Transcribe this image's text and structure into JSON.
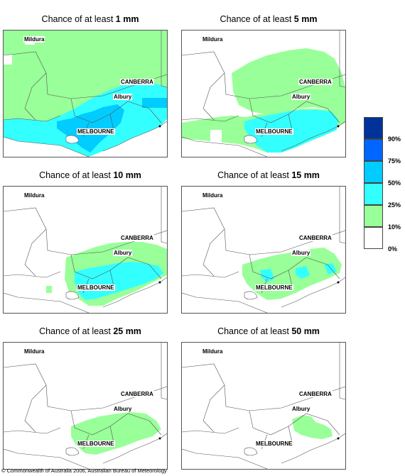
{
  "panels": [
    {
      "title_prefix": "Chance of at least ",
      "threshold": "1 mm"
    },
    {
      "title_prefix": "Chance of at least ",
      "threshold": "5 mm"
    },
    {
      "title_prefix": "Chance of at least ",
      "threshold": "10 mm"
    },
    {
      "title_prefix": "Chance of at least ",
      "threshold": "15 mm"
    },
    {
      "title_prefix": "Chance of at least ",
      "threshold": "25 mm"
    },
    {
      "title_prefix": "Chance of at least ",
      "threshold": "50 mm"
    }
  ],
  "places": {
    "mildura": "Mildura",
    "canberra": "CANBERRA",
    "albury": "Albury",
    "melbourne": "MELBOURNE"
  },
  "legend": {
    "labels": [
      "90%",
      "75%",
      "50%",
      "25%",
      "10%",
      "0%"
    ],
    "colors": [
      "#003399",
      "#0066ff",
      "#00ccff",
      "#33ffff",
      "#99ff99",
      "#ffffff"
    ]
  },
  "copyright": "© Commonwealth of Australia 2006, Australian Bureau of Meteorology"
}
